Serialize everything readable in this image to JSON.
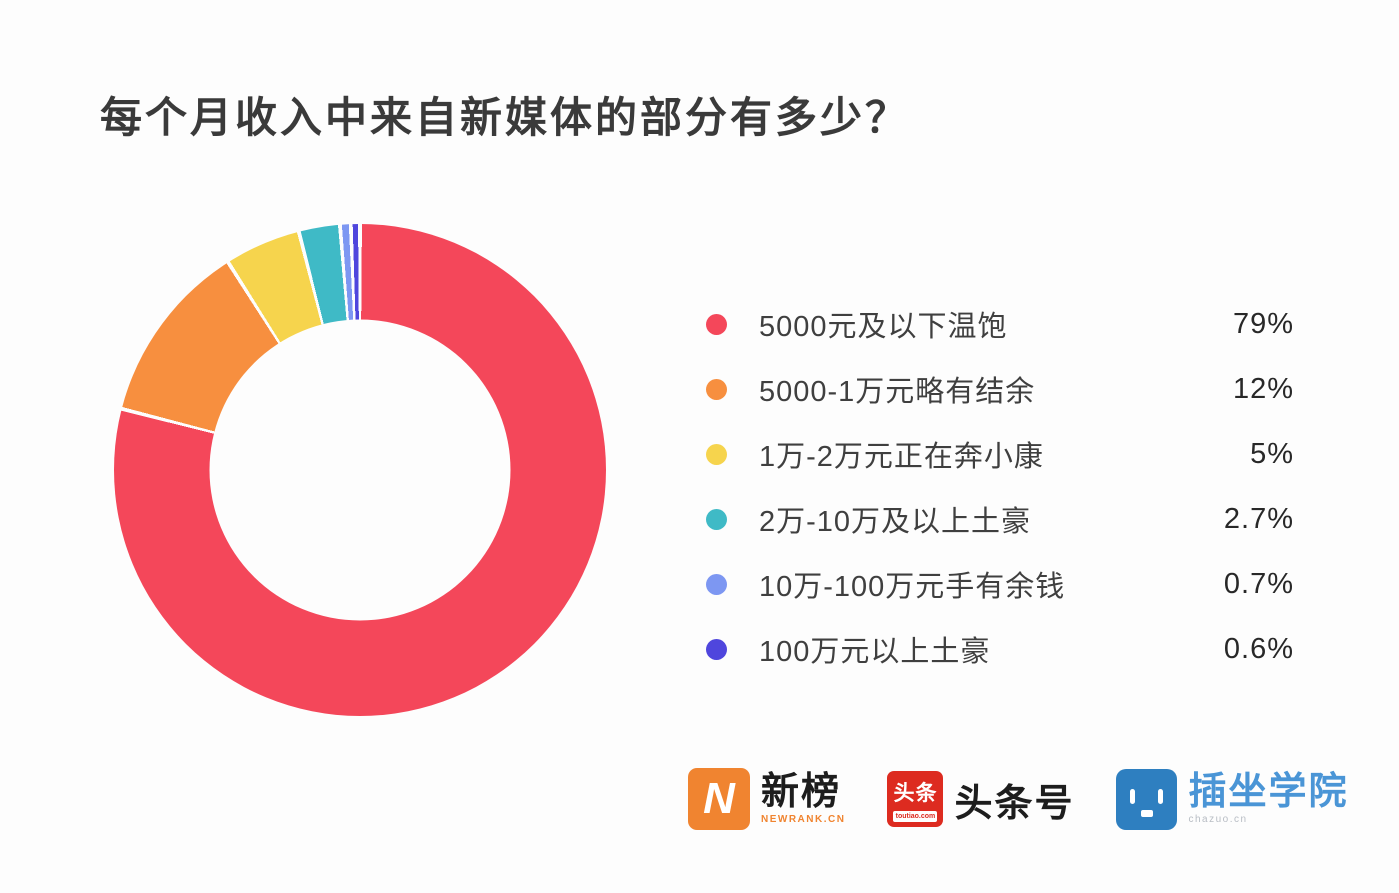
{
  "title": "每个月收入中来自新媒体的部分有多少？",
  "chart_data": {
    "type": "pie",
    "subtype": "donut",
    "title": "每个月收入中来自新媒体的部分有多少？",
    "direction": "clockwise",
    "start_angle_deg": 0,
    "hole_ratio": 0.61,
    "slice_gap_deg": 0.9,
    "legend_position": "right",
    "background_color": "#FDFDFD",
    "slices": [
      {
        "label": "5000元及以下温饱",
        "value": 79,
        "pct_label": "79%",
        "color": "#F4475A"
      },
      {
        "label": "5000-1万元略有结余",
        "value": 12,
        "pct_label": "12%",
        "color": "#F78F3F"
      },
      {
        "label": "1万-2万元正在奔小康",
        "value": 5,
        "pct_label": "5%",
        "color": "#F6D44D"
      },
      {
        "label": "2万-10万及以上土豪",
        "value": 2.7,
        "pct_label": "2.7%",
        "color": "#3FBAC6"
      },
      {
        "label": "10万-100万元手有余钱",
        "value": 0.7,
        "pct_label": "0.7%",
        "color": "#7D97F2"
      },
      {
        "label": "100万元以上土豪",
        "value": 0.6,
        "pct_label": "0.6%",
        "color": "#4F46DD"
      }
    ]
  },
  "footer": {
    "logos": [
      {
        "name": "newrank",
        "icon_letter": "N",
        "icon_color": "#F08430",
        "text": "新榜",
        "subtext": "NEWRANK.CN",
        "subtext_color": "#F08430"
      },
      {
        "name": "toutiao",
        "icon_text": "头条",
        "icon_color": "#DD2B20",
        "icon_subtext": "toutiao.com",
        "text": "头条号"
      },
      {
        "name": "chazuo",
        "icon_color": "#2E7FC0",
        "text": "插坐学院",
        "text_color": "#4A95D6",
        "subtext": "chazuo.cn"
      }
    ]
  }
}
